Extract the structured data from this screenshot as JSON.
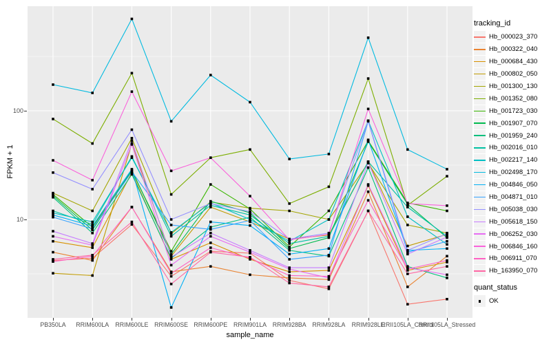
{
  "chart_data": {
    "type": "line",
    "title": "",
    "xlabel": "sample_name",
    "ylabel": "FPKM + 1",
    "y_scale": "log10",
    "ylim": [
      1.4,
      800
    ],
    "grid": "on",
    "legend_position": "right",
    "y_tick_labels": [
      "100",
      "10"
    ],
    "y_tick_values": [
      100,
      10
    ],
    "y_minor_gridline_values": [
      3.162,
      31.62,
      316.2
    ],
    "point_shape": "filled-square",
    "categories": [
      "PB350LA",
      "RRIM600LA",
      "RRIM600LE",
      "RRIM600SE",
      "RRIM600PE",
      "RRIM901LA",
      "RRIM928BA",
      "RRIM928LA",
      "RRIM928LE",
      "RRII105LA_Control",
      "RRII105LA_Stressed"
    ],
    "series": [
      {
        "tracking_id": "Hb_000023_370",
        "color": "#F8766D",
        "values": [
          4.2,
          4.4,
          9.0,
          3.0,
          5.1,
          4.9,
          2.75,
          2.3,
          12,
          1.66,
          1.85
        ]
      },
      {
        "tracking_id": "Hb_000322_040",
        "color": "#EA8331",
        "values": [
          5.0,
          4.2,
          13,
          3.3,
          3.7,
          3.1,
          2.9,
          2.8,
          18,
          2.4,
          4.6
        ]
      },
      {
        "tracking_id": "Hb_000684_430",
        "color": "#D89000",
        "values": [
          6.3,
          5.5,
          27,
          4.3,
          6.1,
          4.3,
          3.3,
          3.4,
          20.5,
          3.4,
          4.05
        ]
      },
      {
        "tracking_id": "Hb_000802_050",
        "color": "#C09B00",
        "values": [
          3.2,
          3.05,
          50,
          4.6,
          13,
          9.5,
          6.6,
          7.2,
          34,
          5.7,
          7.3
        ]
      },
      {
        "tracking_id": "Hb_001300_130",
        "color": "#A3A500",
        "values": [
          17.5,
          12,
          56,
          7.4,
          14.5,
          12.7,
          12,
          10,
          33,
          8.9,
          7.5
        ]
      },
      {
        "tracking_id": "Hb_001352_080",
        "color": "#7CAE00",
        "values": [
          84,
          50,
          222,
          17,
          37,
          44,
          14,
          20,
          198,
          13.5,
          25
        ]
      },
      {
        "tracking_id": "Hb_001723_030",
        "color": "#39B600",
        "values": [
          17,
          8.5,
          28,
          5.1,
          21,
          12.5,
          5.6,
          12,
          53,
          14.2,
          12
        ]
      },
      {
        "tracking_id": "Hb_001907_070",
        "color": "#00BB4E",
        "values": [
          16.5,
          8.0,
          28.5,
          4.8,
          14.7,
          11.5,
          5.4,
          6.8,
          52,
          13.8,
          6.8
        ]
      },
      {
        "tracking_id": "Hb_001959_240",
        "color": "#00BF7D",
        "values": [
          16,
          7.5,
          26,
          4.4,
          8.5,
          10.5,
          5.2,
          4.6,
          30,
          3.7,
          2.9
        ]
      },
      {
        "tracking_id": "Hb_002016_010",
        "color": "#00C1A3",
        "values": [
          12,
          9.0,
          38,
          7.0,
          13.5,
          11,
          6.0,
          7.0,
          34,
          13,
          7.0
        ]
      },
      {
        "tracking_id": "Hb_002217_140",
        "color": "#00BFC4",
        "values": [
          11.5,
          9.5,
          37,
          7.6,
          14.2,
          10,
          6.3,
          10,
          81,
          10.6,
          5.9
        ]
      },
      {
        "tracking_id": "Hb_002498_170",
        "color": "#00BAE0",
        "values": [
          174,
          146,
          700,
          80,
          213,
          120,
          36,
          40,
          470,
          44,
          29
        ]
      },
      {
        "tracking_id": "Hb_004846_050",
        "color": "#00B0F6",
        "values": [
          11,
          8.7,
          29,
          1.55,
          9.5,
          8.8,
          4.8,
          5.4,
          54,
          5.2,
          5.4
        ]
      },
      {
        "tracking_id": "Hb_004871_010",
        "color": "#35A2FF",
        "values": [
          10.5,
          8.2,
          27.5,
          8.9,
          8.1,
          9.8,
          4.3,
          4.7,
          80,
          5.0,
          6.3
        ]
      },
      {
        "tracking_id": "Hb_005038_030",
        "color": "#9590FF",
        "values": [
          27,
          19,
          67,
          10,
          14,
          11.8,
          6.6,
          7.5,
          81,
          5.2,
          7.4
        ]
      },
      {
        "tracking_id": "Hb_005618_150",
        "color": "#C77CFF",
        "values": [
          7.8,
          6.0,
          53,
          4.5,
          7.5,
          5.2,
          3.6,
          3.6,
          33.5,
          4.8,
          6.9
        ]
      },
      {
        "tracking_id": "Hb_006252_030",
        "color": "#E76BF3",
        "values": [
          7.0,
          5.8,
          49,
          3.8,
          7.0,
          5.0,
          3.5,
          2.9,
          21,
          3.6,
          3.1
        ]
      },
      {
        "tracking_id": "Hb_006846_160",
        "color": "#FA62DB",
        "values": [
          35,
          23,
          150,
          28,
          37,
          16.4,
          6.5,
          7.3,
          104,
          14,
          13.4
        ]
      },
      {
        "tracking_id": "Hb_006911_070",
        "color": "#FF61C3",
        "values": [
          4.1,
          4.6,
          13,
          3.2,
          5.5,
          4.4,
          3.05,
          3.0,
          15,
          3.5,
          4.2
        ]
      },
      {
        "tracking_id": "Hb_163950_070",
        "color": "#FF67A4",
        "values": [
          4.3,
          4.7,
          9.5,
          2.55,
          5.0,
          4.5,
          2.6,
          2.4,
          12,
          3.16,
          3.7
        ]
      }
    ],
    "legend": {
      "tracking_id_title": "tracking_id",
      "quant_status_title": "quant_status",
      "quant_status_items": [
        "OK"
      ]
    },
    "colors": {
      "panel_background": "#EBEBEB",
      "gridline": "#FFFFFF",
      "point": "#000000",
      "axis_text": "#4D4D4D"
    }
  }
}
